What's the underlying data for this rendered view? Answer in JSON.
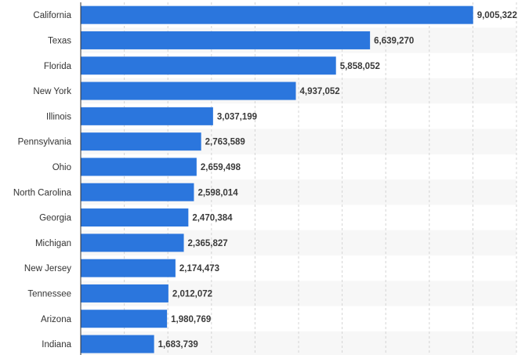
{
  "chart_data": {
    "type": "bar",
    "orientation": "horizontal",
    "categories": [
      "California",
      "Texas",
      "Florida",
      "New York",
      "Illinois",
      "Pennsylvania",
      "Ohio",
      "North Carolina",
      "Georgia",
      "Michigan",
      "New Jersey",
      "Tennessee",
      "Arizona",
      "Indiana"
    ],
    "values": [
      9005322,
      6639270,
      5858052,
      4937052,
      3037199,
      2763589,
      2659498,
      2598014,
      2470384,
      2365827,
      2174473,
      2012072,
      1980769,
      1683739
    ],
    "data_labels": [
      "9,005,322",
      "6,639,270",
      "5,858,052",
      "4,937,052",
      "3,037,199",
      "2,763,589",
      "2,659,498",
      "2,598,014",
      "2,470,384",
      "2,365,827",
      "2,174,473",
      "2,012,072",
      "1,980,769",
      "1,683,739"
    ],
    "title": "",
    "xlabel": "",
    "ylabel": "",
    "xlim": [
      0,
      10000000
    ],
    "grid": "vertical dashed",
    "legend": "none"
  },
  "colors": {
    "bar": "#2b76dd",
    "row_stripe": "#f7f7f7",
    "grid": "#d4d4d4",
    "axis": "#333333",
    "category_text": "#333333",
    "value_text": "#3a3a3a"
  }
}
